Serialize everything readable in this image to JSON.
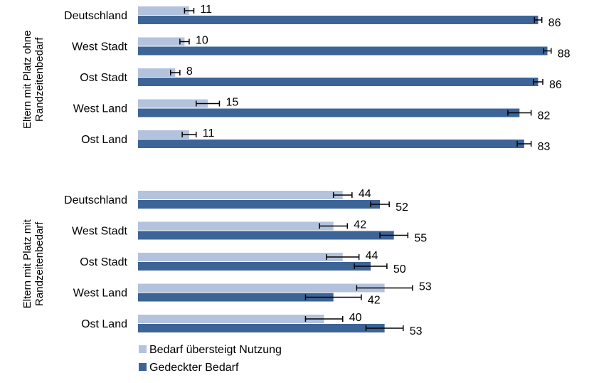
{
  "chart_data": {
    "type": "bar",
    "orientation": "horizontal",
    "groups": [
      {
        "label_lines": [
          "Eltern mit Platz ohne",
          "Randzeitenbedarf"
        ],
        "categories": [
          "Deutschland",
          "West Stadt",
          "Ost Stadt",
          "West Land",
          "Ost Land"
        ],
        "series": [
          {
            "name": "Bedarf übersteigt Nutzung",
            "values": [
              11,
              10,
              8,
              15,
              11
            ],
            "errors": [
              1,
              1,
              1,
              2.5,
              1.5
            ],
            "value_labels": [
              "11",
              "10",
              "8",
              "15",
              "11"
            ]
          },
          {
            "name": "Gedeckter Bedarf",
            "values": [
              86,
              88,
              86,
              82,
              83
            ],
            "errors": [
              0.8,
              0.8,
              1,
              2.5,
              1.5
            ],
            "value_labels": [
              "86",
              "88",
              "86",
              "82",
              "83"
            ]
          }
        ]
      },
      {
        "label_lines": [
          "Eltern mit Platz mit",
          "Randzeitenbedarf"
        ],
        "categories": [
          "Deutschland",
          "West Stadt",
          "Ost Stadt",
          "West Land",
          "Ost Land"
        ],
        "series": [
          {
            "name": "Bedarf übersteigt Nutzung",
            "values": [
              44,
              42,
              44,
              53,
              40
            ],
            "errors": [
              2,
              3,
              3.5,
              6,
              4
            ],
            "value_labels": [
              "44",
              "42",
              "44",
              "53",
              "40"
            ]
          },
          {
            "name": "Gedeckter Bedarf",
            "values": [
              52,
              55,
              50,
              42,
              53
            ],
            "errors": [
              2,
              3,
              3.5,
              6,
              4
            ],
            "value_labels": [
              "52",
              "55",
              "50",
              "42",
              "53"
            ]
          }
        ]
      }
    ],
    "xlim": [
      0,
      100
    ],
    "colors": {
      "Bedarf übersteigt Nutzung": "#b4c3dd",
      "Gedeckter Bedarf": "#3d6497"
    },
    "legend": [
      "Bedarf übersteigt Nutzung",
      "Gedeckter Bedarf"
    ],
    "legend_position": "bottom-left",
    "grid": false
  }
}
